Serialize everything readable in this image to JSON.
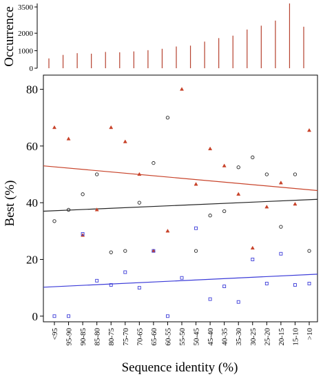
{
  "colors": {
    "red": "#c8432a",
    "black": "#222222",
    "blue": "#3a3ad8",
    "occurrence_bar": "#b5402d",
    "axis": "#000000"
  },
  "chart_data": [
    {
      "id": "occurrence",
      "type": "bar",
      "ylabel": "Occurrence",
      "yticks": [
        0,
        1000,
        2000,
        3500
      ],
      "ylim": [
        0,
        3700
      ],
      "categories": [
        "<95",
        "95-90",
        "90-85",
        "85-80",
        "80-75",
        "75-70",
        "70-65",
        "65-60",
        "60-55",
        "55-50",
        "50-45",
        "45-40",
        "40-35",
        "35-30",
        "30-25",
        "25-20",
        "20-15",
        "15-10",
        ">10"
      ],
      "values": [
        560,
        760,
        860,
        830,
        930,
        910,
        960,
        1030,
        1110,
        1240,
        1290,
        1520,
        1720,
        1860,
        2210,
        2430,
        2720,
        3700,
        2370
      ]
    },
    {
      "id": "best",
      "type": "scatter",
      "xlabel": "Sequence identity (%)",
      "ylabel": "Best (%)",
      "ylim": [
        -2,
        85
      ],
      "yticks": [
        0,
        20,
        40,
        60,
        80
      ],
      "categories": [
        "<95",
        "95-90",
        "90-85",
        "85-80",
        "80-75",
        "75-70",
        "70-65",
        "65-60",
        "60-55",
        "55-50",
        "50-45",
        "45-40",
        "40-35",
        "35-30",
        "30-25",
        "25-20",
        "20-15",
        "15-10",
        ">10"
      ],
      "series": [
        {
          "color_key": "red",
          "marker": "triangle",
          "values": [
            66.5,
            62.5,
            28.5,
            37.5,
            66.5,
            61.5,
            50,
            23,
            30,
            80,
            46.5,
            59,
            53,
            43,
            24,
            38.5,
            47,
            39.5,
            65.5
          ],
          "trend": [
            53,
            44.3
          ]
        },
        {
          "color_key": "black",
          "marker": "circle",
          "values": [
            33.5,
            37.5,
            43,
            50,
            22.5,
            23,
            40,
            54,
            70,
            null,
            23,
            35.5,
            37,
            52.5,
            56,
            50,
            31.5,
            50,
            23
          ],
          "trend": [
            37,
            41.2
          ]
        },
        {
          "color_key": "blue",
          "marker": "square",
          "values": [
            0,
            0,
            29,
            12.5,
            11,
            15.5,
            10,
            23,
            0,
            13.5,
            31,
            6,
            10.5,
            5,
            20,
            11.5,
            22,
            11,
            11.5
          ],
          "trend": [
            10.2,
            14.8
          ]
        }
      ]
    }
  ]
}
